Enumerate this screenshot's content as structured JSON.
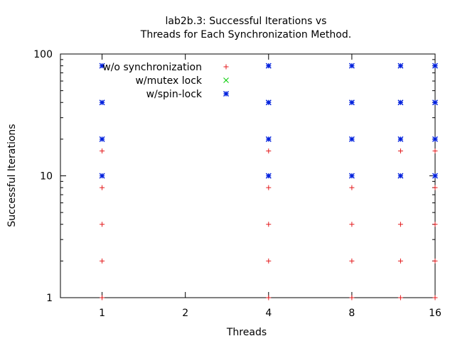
{
  "chart_data": {
    "type": "scatter",
    "title_lines": [
      "lab2b.3: Successful Iterations vs",
      "Threads for Each Synchronization Method."
    ],
    "xlabel": "Threads",
    "ylabel": "Successful Iterations",
    "x_scale": "log2",
    "y_scale": "log10",
    "xlim": [
      0.707,
      16
    ],
    "ylim": [
      1,
      100
    ],
    "x_ticks": [
      {
        "value": 1,
        "label": "1"
      },
      {
        "value": 2,
        "label": "2"
      },
      {
        "value": 4,
        "label": "4"
      },
      {
        "value": 8,
        "label": "8"
      },
      {
        "value": 16,
        "label": "16"
      }
    ],
    "y_ticks": [
      {
        "value": 1,
        "label": "1"
      },
      {
        "value": 10,
        "label": "10"
      },
      {
        "value": 100,
        "label": "100"
      }
    ],
    "legend_position": "top-left",
    "series": [
      {
        "name": "w/o synchronization",
        "color": "#e41a1c",
        "marker": "plus",
        "points": [
          {
            "x": 1,
            "y": 1
          },
          {
            "x": 1,
            "y": 2
          },
          {
            "x": 1,
            "y": 4
          },
          {
            "x": 1,
            "y": 8
          },
          {
            "x": 1,
            "y": 16
          },
          {
            "x": 4,
            "y": 1
          },
          {
            "x": 4,
            "y": 2
          },
          {
            "x": 4,
            "y": 4
          },
          {
            "x": 4,
            "y": 8
          },
          {
            "x": 4,
            "y": 16
          },
          {
            "x": 8,
            "y": 1
          },
          {
            "x": 8,
            "y": 2
          },
          {
            "x": 8,
            "y": 4
          },
          {
            "x": 8,
            "y": 8
          },
          {
            "x": 12,
            "y": 1
          },
          {
            "x": 12,
            "y": 2
          },
          {
            "x": 12,
            "y": 4
          },
          {
            "x": 12,
            "y": 16
          },
          {
            "x": 16,
            "y": 1
          },
          {
            "x": 16,
            "y": 2
          },
          {
            "x": 16,
            "y": 4
          },
          {
            "x": 16,
            "y": 8
          },
          {
            "x": 16,
            "y": 16
          }
        ]
      },
      {
        "name": "w/mutex lock",
        "color": "#00cc00",
        "marker": "cross",
        "points": []
      },
      {
        "name": "w/spin-lock",
        "color": "#0020dd",
        "marker": "star",
        "points": [
          {
            "x": 1,
            "y": 10
          },
          {
            "x": 1,
            "y": 20
          },
          {
            "x": 1,
            "y": 40
          },
          {
            "x": 1,
            "y": 80
          },
          {
            "x": 4,
            "y": 10
          },
          {
            "x": 4,
            "y": 20
          },
          {
            "x": 4,
            "y": 40
          },
          {
            "x": 4,
            "y": 80
          },
          {
            "x": 8,
            "y": 10
          },
          {
            "x": 8,
            "y": 20
          },
          {
            "x": 8,
            "y": 40
          },
          {
            "x": 8,
            "y": 80
          },
          {
            "x": 12,
            "y": 10
          },
          {
            "x": 12,
            "y": 20
          },
          {
            "x": 12,
            "y": 40
          },
          {
            "x": 12,
            "y": 80
          },
          {
            "x": 16,
            "y": 10
          },
          {
            "x": 16,
            "y": 20
          },
          {
            "x": 16,
            "y": 40
          },
          {
            "x": 16,
            "y": 80
          }
        ]
      }
    ]
  }
}
